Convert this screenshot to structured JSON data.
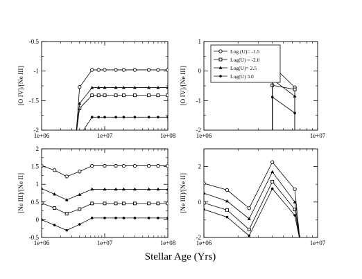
{
  "figure": {
    "xlabel": "Stellar Age (Yrs)"
  },
  "legend": [
    {
      "label": "Log (U)= -1.5",
      "marker": "circle"
    },
    {
      "label": "Log(U) = -2.0",
      "marker": "square"
    },
    {
      "label": "Log(U)= 2.5",
      "marker": "triangle"
    },
    {
      "label": "Log(U) 3.0",
      "marker": "dot"
    }
  ],
  "chart_data": [
    {
      "type": "line",
      "panel": "top-left",
      "ylabel": "[O IV]/[Ne III]",
      "xscale": "log",
      "xlim": [
        1000000,
        100000000
      ],
      "ylim": [
        -2,
        -0.5
      ],
      "xticks": [
        "1e+06",
        "1e+07",
        "1e+08"
      ],
      "yticks": [
        "-2",
        "-1.5",
        "-1",
        "-0.5"
      ],
      "series": [
        {
          "name": "Log (U)= -1.5",
          "marker": "circle",
          "x": [
            3500000,
            4000000,
            6300000,
            8000000,
            10000000,
            15000000,
            20000000,
            30000000,
            50000000,
            70000000,
            100000000
          ],
          "y": [
            -2.1,
            -1.27,
            -0.98,
            -0.98,
            -0.98,
            -0.98,
            -0.98,
            -0.98,
            -0.98,
            -0.98,
            -0.98
          ]
        },
        {
          "name": "Log(U) = -2.0",
          "marker": "square",
          "x": [
            3500000,
            4000000,
            6300000,
            8000000,
            10000000,
            15000000,
            20000000,
            30000000,
            50000000,
            70000000,
            100000000
          ],
          "y": [
            -2.1,
            -1.63,
            -1.41,
            -1.41,
            -1.41,
            -1.41,
            -1.41,
            -1.41,
            -1.41,
            -1.41,
            -1.41
          ]
        },
        {
          "name": "Log(U)= 2.5",
          "marker": "triangle",
          "x": [
            3500000,
            4000000,
            6300000,
            8000000,
            10000000,
            15000000,
            20000000,
            30000000,
            50000000,
            70000000,
            100000000
          ],
          "y": [
            -2.1,
            -1.55,
            -1.28,
            -1.28,
            -1.28,
            -1.28,
            -1.28,
            -1.28,
            -1.28,
            -1.28,
            -1.28
          ]
        },
        {
          "name": "Log(U) 3.0",
          "marker": "dot",
          "x": [
            4000000,
            6300000,
            8000000,
            10000000,
            15000000,
            20000000,
            30000000,
            50000000,
            70000000,
            100000000
          ],
          "y": [
            -2.1,
            -1.78,
            -1.78,
            -1.78,
            -1.78,
            -1.78,
            -1.78,
            -1.78,
            -1.78,
            -1.78
          ]
        }
      ]
    },
    {
      "type": "line",
      "panel": "top-right",
      "ylabel": "[O IV]/[Ne III]",
      "xscale": "log",
      "xlim": [
        1000000,
        10000000
      ],
      "ylim": [
        -2,
        1
      ],
      "xticks": [
        "1e+06",
        "1e+07"
      ],
      "yticks": [
        "-2",
        "-1",
        "0",
        "1"
      ],
      "legend_position": "top-left",
      "series": [
        {
          "name": "Log (U)= -1.5",
          "marker": "circle",
          "x": [
            4000000,
            4000000,
            6300000,
            6300000
          ],
          "y": [
            -2.1,
            0.18,
            -0.55,
            -2.1
          ]
        },
        {
          "name": "Log(U) = -2.0",
          "marker": "square",
          "x": [
            4000000,
            4000000,
            6300000,
            6300000
          ],
          "y": [
            -2.1,
            -0.48,
            -0.62,
            -2.1
          ]
        },
        {
          "name": "Log(U)= 2.5",
          "marker": "triangle",
          "x": [
            4000000,
            4000000,
            6300000,
            6300000
          ],
          "y": [
            -2.1,
            -0.28,
            -0.85,
            -2.1
          ]
        },
        {
          "name": "Log(U) 3.0",
          "marker": "dot",
          "x": [
            4000000,
            4000000,
            6300000,
            6300000
          ],
          "y": [
            -2.1,
            -0.88,
            -1.42,
            -2.1
          ]
        }
      ]
    },
    {
      "type": "line",
      "panel": "bottom-left",
      "ylabel": "[Ne III]/[Ne II]",
      "xscale": "log",
      "xlim": [
        1000000,
        100000000
      ],
      "ylim": [
        -0.5,
        2
      ],
      "xticks": [
        "1e+06",
        "1e+07",
        "1e+08"
      ],
      "yticks": [
        "-0.5",
        "0",
        "0.5",
        "1",
        "1.5",
        "2"
      ],
      "series": [
        {
          "name": "Log (U)= -1.5",
          "marker": "circle",
          "x": [
            1000000,
            1600000,
            2500000,
            4000000,
            6300000,
            10000000,
            15000000,
            20000000,
            30000000,
            50000000,
            70000000,
            100000000
          ],
          "y": [
            1.52,
            1.4,
            1.22,
            1.36,
            1.52,
            1.52,
            1.52,
            1.52,
            1.52,
            1.52,
            1.52,
            1.52
          ]
        },
        {
          "name": "Log(U) = -2.0",
          "marker": "square",
          "x": [
            1000000,
            1600000,
            2500000,
            4000000,
            6300000,
            10000000,
            15000000,
            20000000,
            30000000,
            50000000,
            70000000,
            100000000
          ],
          "y": [
            0.47,
            0.33,
            0.17,
            0.3,
            0.46,
            0.46,
            0.46,
            0.46,
            0.46,
            0.46,
            0.46,
            0.46
          ]
        },
        {
          "name": "Log(U)= 2.5",
          "marker": "triangle",
          "x": [
            1000000,
            1600000,
            2500000,
            4000000,
            6300000,
            10000000,
            15000000,
            20000000,
            30000000,
            50000000,
            70000000,
            100000000
          ],
          "y": [
            0.88,
            0.72,
            0.56,
            0.71,
            0.86,
            0.86,
            0.86,
            0.86,
            0.86,
            0.86,
            0.86,
            0.86
          ]
        },
        {
          "name": "Log(U) 3.0",
          "marker": "dot",
          "x": [
            1000000,
            1600000,
            2500000,
            4000000,
            6300000,
            10000000,
            15000000,
            20000000,
            30000000,
            50000000,
            70000000,
            100000000
          ],
          "y": [
            0.0,
            -0.15,
            -0.3,
            -0.13,
            0.05,
            0.05,
            0.05,
            0.05,
            0.05,
            0.05,
            0.05,
            0.05
          ]
        }
      ]
    },
    {
      "type": "line",
      "panel": "bottom-right",
      "ylabel": "[Ne III]/[Ne II]",
      "xscale": "log",
      "xlim": [
        1000000,
        10000000
      ],
      "ylim": [
        -2,
        3
      ],
      "xticks": [
        "1e+06",
        "1e+07"
      ],
      "yticks": [
        "-2",
        "0",
        "2"
      ],
      "series": [
        {
          "name": "Log (U)= -1.5",
          "marker": "circle",
          "x": [
            1000000,
            1600000,
            2500000,
            4000000,
            6300000,
            7000000
          ],
          "y": [
            1.05,
            0.68,
            -0.35,
            2.25,
            0.72,
            -2.2
          ]
        },
        {
          "name": "Log(U) = -2.0",
          "marker": "square",
          "x": [
            1000000,
            1600000,
            2500000,
            4000000,
            6300000,
            7000000
          ],
          "y": [
            -0.05,
            -0.45,
            -1.55,
            1.15,
            -0.42,
            -2.2
          ]
        },
        {
          "name": "Log(U)= 2.5",
          "marker": "triangle",
          "x": [
            1000000,
            1600000,
            2500000,
            4000000,
            6300000,
            7000000
          ],
          "y": [
            0.5,
            0.05,
            -0.95,
            1.7,
            0.0,
            -2.2
          ]
        },
        {
          "name": "Log(U) 3.0",
          "marker": "dot",
          "x": [
            1000000,
            1600000,
            2500000,
            4000000,
            6300000,
            7000000
          ],
          "y": [
            -0.42,
            -0.85,
            -1.9,
            0.75,
            -0.75,
            -2.2
          ]
        }
      ]
    }
  ]
}
